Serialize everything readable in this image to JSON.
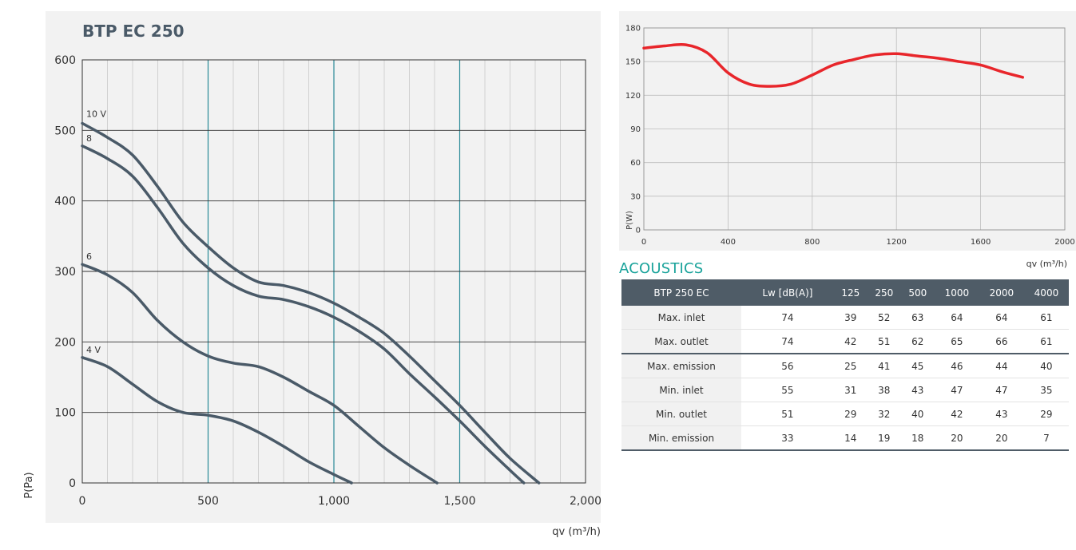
{
  "pressure_chart": {
    "title": "BTP EC 250",
    "ylabel": "P(Pa)",
    "xlabel": "qv (m³/h)",
    "x_tick_labels": [
      "0",
      "500",
      "1,000",
      "1,500",
      "2,000"
    ],
    "y_tick_labels": [
      "0",
      "100",
      "200",
      "300",
      "400",
      "500",
      "600"
    ],
    "curve_labels": [
      "10 V",
      "8",
      "6",
      "4 V"
    ]
  },
  "power_chart": {
    "ylabel": "P(W)",
    "xlabel": "qv (m³/h)",
    "x_tick_labels": [
      "0",
      "400",
      "800",
      "1200",
      "1600",
      "2000"
    ],
    "y_tick_labels": [
      "0",
      "30",
      "60",
      "90",
      "120",
      "150",
      "180"
    ]
  },
  "chart_data": [
    {
      "type": "line",
      "title": "BTP EC 250",
      "xlabel": "qv (m³/h)",
      "ylabel": "P(Pa)",
      "xlim": [
        0,
        2000
      ],
      "ylim": [
        0,
        600
      ],
      "grid": true,
      "series": [
        {
          "name": "10 V",
          "x": [
            0,
            100,
            200,
            300,
            400,
            500,
            600,
            700,
            800,
            900,
            1000,
            1100,
            1200,
            1300,
            1400,
            1500,
            1600,
            1700,
            1815
          ],
          "y": [
            510,
            490,
            465,
            420,
            370,
            335,
            305,
            285,
            280,
            270,
            255,
            235,
            212,
            180,
            145,
            110,
            72,
            35,
            0
          ]
        },
        {
          "name": "8",
          "x": [
            0,
            100,
            200,
            300,
            400,
            500,
            600,
            700,
            800,
            900,
            1000,
            1100,
            1200,
            1300,
            1400,
            1500,
            1600,
            1700,
            1755
          ],
          "y": [
            478,
            460,
            435,
            390,
            340,
            305,
            280,
            265,
            260,
            250,
            235,
            215,
            190,
            155,
            122,
            88,
            52,
            18,
            0
          ]
        },
        {
          "name": "6",
          "x": [
            0,
            100,
            200,
            300,
            400,
            500,
            600,
            700,
            800,
            900,
            1000,
            1100,
            1200,
            1300,
            1410
          ],
          "y": [
            310,
            295,
            270,
            230,
            200,
            180,
            170,
            165,
            150,
            130,
            110,
            80,
            50,
            25,
            0
          ]
        },
        {
          "name": "4 V",
          "x": [
            0,
            100,
            200,
            300,
            400,
            500,
            600,
            700,
            800,
            900,
            1000,
            1070
          ],
          "y": [
            178,
            165,
            140,
            115,
            100,
            96,
            88,
            72,
            52,
            30,
            12,
            0
          ]
        }
      ]
    },
    {
      "type": "line",
      "xlabel": "qv (m³/h)",
      "ylabel": "P(W)",
      "xlim": [
        0,
        2000
      ],
      "ylim": [
        0,
        180
      ],
      "grid": true,
      "series": [
        {
          "x": [
            0,
            100,
            200,
            300,
            400,
            500,
            600,
            700,
            800,
            900,
            1000,
            1100,
            1200,
            1300,
            1400,
            1500,
            1600,
            1700,
            1800
          ],
          "y": [
            162,
            164,
            165,
            158,
            140,
            130,
            128,
            130,
            138,
            147,
            152,
            156,
            157,
            155,
            153,
            150,
            147,
            141,
            136
          ]
        }
      ]
    }
  ],
  "acoustics": {
    "title": "ACOUSTICS",
    "headers": [
      "BTP 250 EC",
      "Lw [dB(A)]",
      "125",
      "250",
      "500",
      "1000",
      "2000",
      "4000"
    ],
    "rows": [
      [
        "Max. inlet",
        "74",
        "39",
        "52",
        "63",
        "64",
        "64",
        "61"
      ],
      [
        "Max. outlet",
        "74",
        "42",
        "51",
        "62",
        "65",
        "66",
        "61"
      ],
      [
        "Max. emission",
        "56",
        "25",
        "41",
        "45",
        "46",
        "44",
        "40"
      ],
      [
        "Min. inlet",
        "55",
        "31",
        "38",
        "43",
        "47",
        "47",
        "35"
      ],
      [
        "Min. outlet",
        "51",
        "29",
        "32",
        "40",
        "42",
        "43",
        "29"
      ],
      [
        "Min. emission",
        "33",
        "14",
        "19",
        "18",
        "20",
        "20",
        "7"
      ]
    ]
  },
  "colors": {
    "fan_curve": "#4a5a68",
    "power_curve": "#e8262b",
    "accent_teal": "#1aa39b",
    "grid_teal": "#2a8a98",
    "table_header": "#4f5c67"
  }
}
